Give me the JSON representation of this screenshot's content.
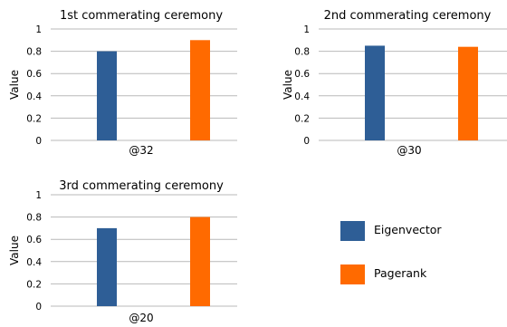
{
  "chart_data": [
    {
      "type": "bar",
      "title": "1st commerating ceremony",
      "ylabel": "Value",
      "ylim": [
        0,
        1
      ],
      "yticks": [
        "0",
        "0.2",
        "0.4",
        "0.6",
        "0.8",
        "1"
      ],
      "categories": [
        "@32"
      ],
      "grid": true,
      "series": [
        {
          "name": "Eigenvector",
          "values": [
            0.8
          ]
        },
        {
          "name": "Pagerank",
          "values": [
            0.9
          ]
        }
      ]
    },
    {
      "type": "bar",
      "title": "2nd commerating ceremony",
      "ylabel": "Value",
      "ylim": [
        0,
        1
      ],
      "yticks": [
        "0",
        "0.2",
        "0.4",
        "0.6",
        "0.8",
        "1"
      ],
      "categories": [
        "@30"
      ],
      "grid": true,
      "series": [
        {
          "name": "Eigenvector",
          "values": [
            0.85
          ]
        },
        {
          "name": "Pagerank",
          "values": [
            0.84
          ]
        }
      ]
    },
    {
      "type": "bar",
      "title": "3rd commerating ceremony",
      "ylabel": "Value",
      "ylim": [
        0,
        1
      ],
      "yticks": [
        "0",
        "0.2",
        "0.4",
        "0.6",
        "0.8",
        "1"
      ],
      "categories": [
        "@20"
      ],
      "grid": true,
      "series": [
        {
          "name": "Eigenvector",
          "values": [
            0.7
          ]
        },
        {
          "name": "Pagerank",
          "values": [
            0.8
          ]
        }
      ]
    }
  ],
  "legend": {
    "placement": "bottom-right",
    "items": [
      {
        "name": "Eigenvector",
        "color": "#2e5e96"
      },
      {
        "name": "Pagerank",
        "color": "#ff6a00"
      }
    ]
  },
  "colors": {
    "eigenvector": "#2e5e96",
    "pagerank": "#ff6a00",
    "grid": "#b9b9b9"
  }
}
